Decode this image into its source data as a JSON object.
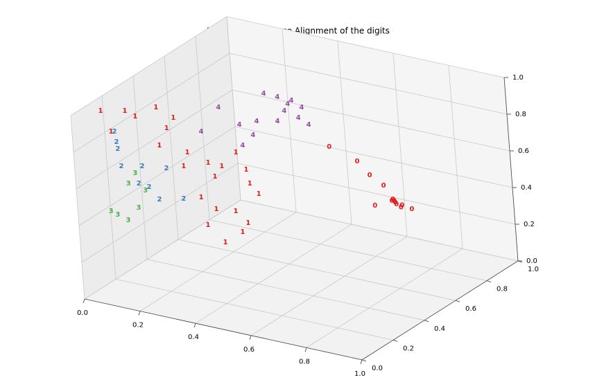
{
  "chart_data": {
    "type": "scatter3d",
    "title": "Local Tangent Space Alignment of the digits",
    "xlim": [
      0,
      1
    ],
    "ylim": [
      0,
      1
    ],
    "zlim": [
      0,
      1
    ],
    "xticks": [
      {
        "value": 0,
        "label": "0.0"
      },
      {
        "value": 0.2,
        "label": "0.2"
      },
      {
        "value": 0.4,
        "label": "0.4"
      },
      {
        "value": 0.6,
        "label": "0.6"
      },
      {
        "value": 0.8,
        "label": "0.8"
      },
      {
        "value": 1,
        "label": "1.0"
      }
    ],
    "yticks": [
      {
        "value": 0,
        "label": "0.0"
      },
      {
        "value": 0.2,
        "label": "0.2"
      },
      {
        "value": 0.4,
        "label": "0.4"
      },
      {
        "value": 0.6,
        "label": "0.6"
      },
      {
        "value": 0.8,
        "label": "0.8"
      },
      {
        "value": 1,
        "label": "1.0"
      }
    ],
    "zticks": [
      {
        "value": 0,
        "label": "0.0"
      },
      {
        "value": 0.2,
        "label": "0.2"
      },
      {
        "value": 0.4,
        "label": "0.4"
      },
      {
        "value": 0.6,
        "label": "0.6"
      },
      {
        "value": 0.8,
        "label": "0.8"
      },
      {
        "value": 1,
        "label": "1.0"
      }
    ],
    "grid": true,
    "series": [
      {
        "name": "0",
        "color": "#e41a1c",
        "x": [
          0.83,
          0.418,
          0.554,
          0.646,
          0.727,
          0.789,
          0.902,
          0.82,
          0.84,
          0.85,
          0.83,
          0.81,
          0.86
        ],
        "y": [
          0.56,
          0.869,
          0.806,
          0.723,
          0.668,
          0.503,
          0.538,
          0.57,
          0.55,
          0.56,
          0.54,
          0.58,
          0.55
        ],
        "z": [
          0.5,
          0.5,
          0.5,
          0.5,
          0.5,
          0.5,
          0.5,
          0.5,
          0.5,
          0.48,
          0.52,
          0.5,
          0.5
        ]
      },
      {
        "name": "1",
        "color": "#e41a1c",
        "x": [
          0.019,
          0.043,
          0.094,
          0.112,
          0.228,
          0.202,
          0.282,
          0.094,
          0.061,
          0.161,
          0.212,
          0.191,
          0.292,
          0.238,
          0.36,
          0.428,
          0.11,
          0.045,
          0.18,
          0.3,
          0.302,
          0.196,
          0.279,
          0.135
        ],
        "y": [
          0.153,
          0.261,
          0.236,
          0.338,
          0.2,
          0.289,
          0.058,
          0.082,
          0.594,
          0.55,
          0.547,
          0.674,
          0.561,
          0.457,
          0.463,
          0.4,
          0.484,
          0.685,
          0.489,
          0.387,
          0.494,
          0.638,
          0.57,
          0.622
        ],
        "z": [
          0.95,
          0.9,
          0.9,
          0.9,
          0.9,
          0.9,
          0.9,
          0.9,
          0.5,
          0.5,
          0.5,
          0.5,
          0.5,
          0.5,
          0.5,
          0.5,
          0.5,
          0.2,
          0.2,
          0.2,
          0.2,
          0.2,
          0.2,
          0.2
        ]
      },
      {
        "name": "2",
        "color": "#377eb8",
        "x": [
          0.022,
          0.023,
          0.024,
          0.031,
          0.08,
          0.154,
          0.105,
          0.145,
          0.207,
          0.063
        ],
        "y": [
          0.223,
          0.234,
          0.246,
          0.216,
          0.28,
          0.304,
          0.271,
          0.262,
          0.307,
          0.28
        ],
        "z": [
          0.8,
          0.7,
          0.6,
          0.75,
          0.6,
          0.6,
          0.5,
          0.45,
          0.45,
          0.5
        ]
      },
      {
        "name": "3",
        "color": "#4daf4a",
        "x": [
          0.024,
          0.035,
          0.084,
          0.068,
          0.057,
          0.11,
          0.05
        ],
        "y": [
          0.162,
          0.263,
          0.233,
          0.19,
          0.147,
          0.239,
          0.284
        ],
        "z": [
          0.4,
          0.5,
          0.4,
          0.35,
          0.4,
          0.5,
          0.55
        ]
      },
      {
        "name": "4",
        "color": "#984ea3",
        "x": [
          0.45,
          0.342,
          0.393,
          0.445,
          0.502,
          0.47,
          0.537,
          0.594,
          0.496,
          0.44,
          0.408,
          0.279,
          0.335,
          0.505,
          0.489
        ],
        "y": [
          0.581,
          0.619,
          0.616,
          0.613,
          0.578,
          0.524,
          0.495,
          0.46,
          0.434,
          0.4,
          0.346,
          0.441,
          0.231,
          0.195,
          0.29
        ],
        "z": [
          0.9,
          0.9,
          0.9,
          0.9,
          0.9,
          0.9,
          0.9,
          0.9,
          0.9,
          0.9,
          0.9,
          0.9,
          0.9,
          0.9,
          0.9
        ]
      }
    ]
  }
}
